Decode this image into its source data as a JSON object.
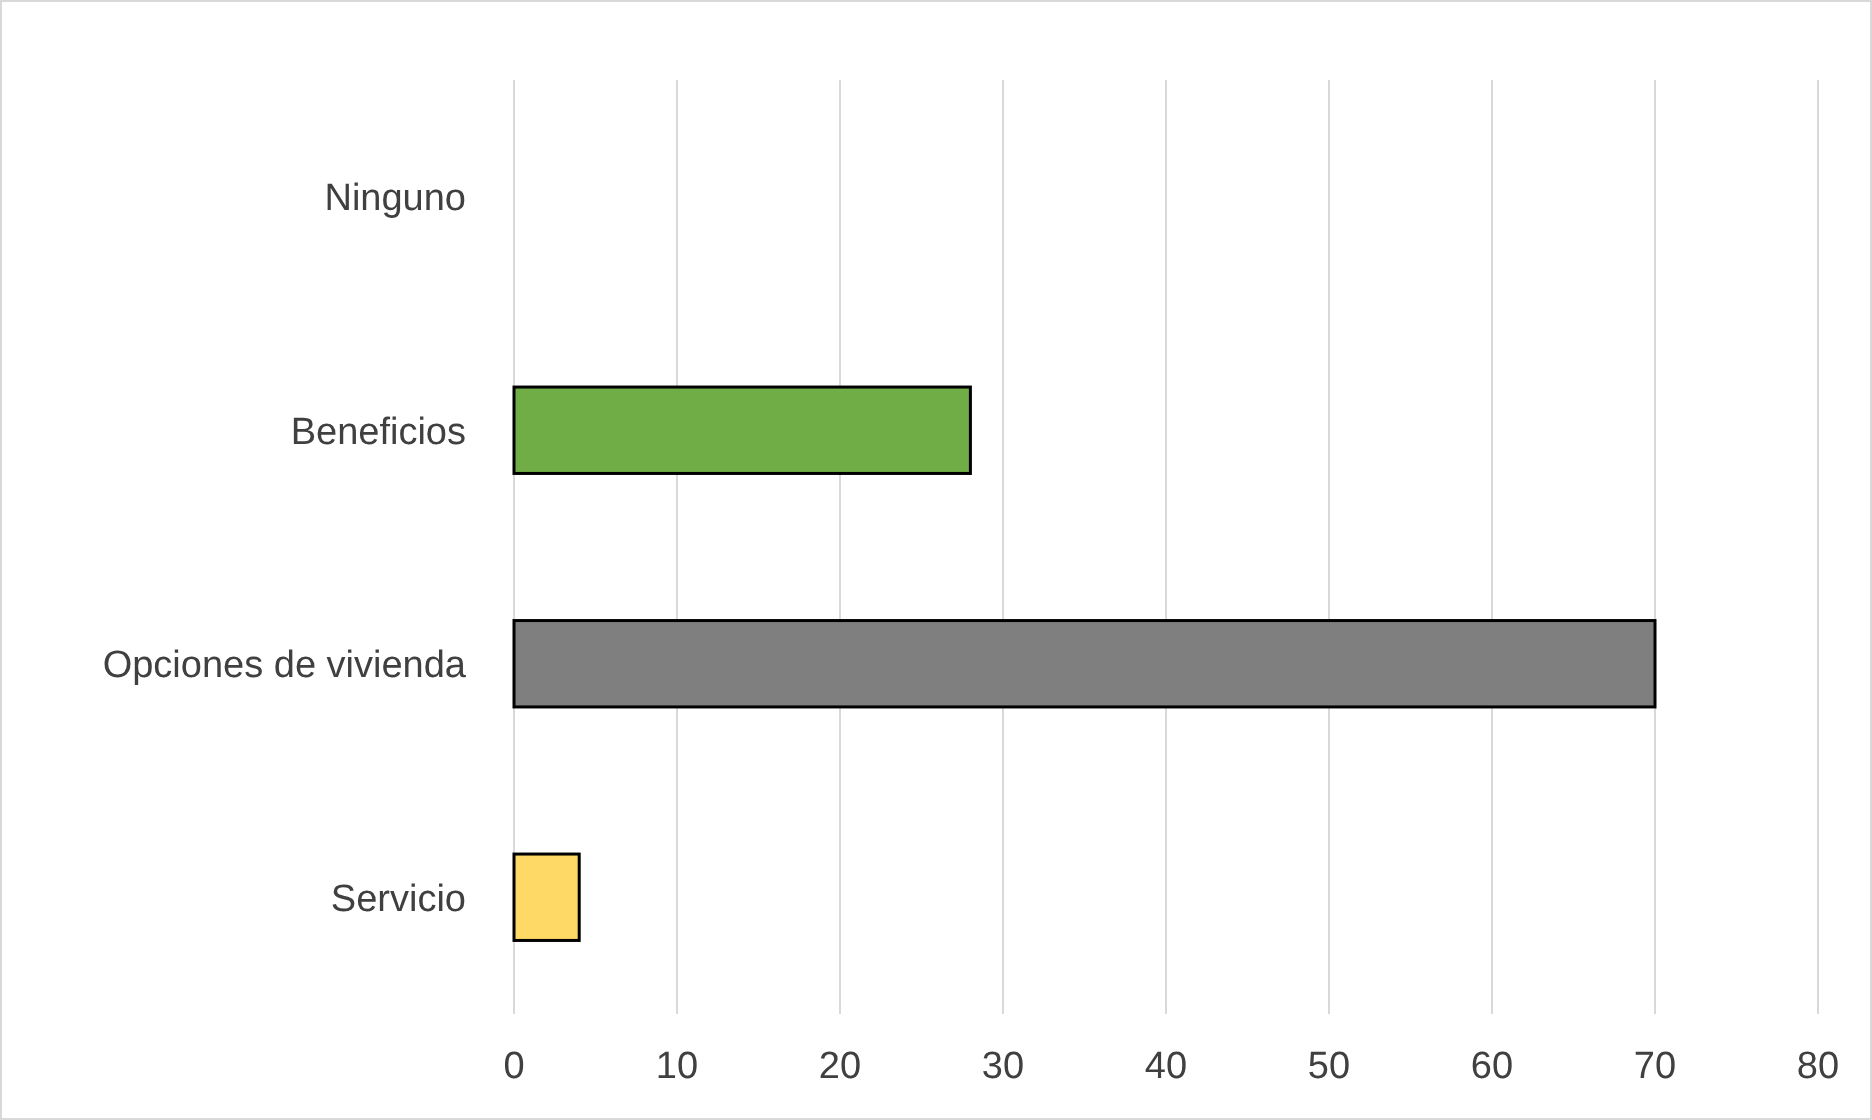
{
  "chart_data": {
    "type": "bar",
    "orientation": "horizontal",
    "categories": [
      "Ninguno",
      "Beneficios",
      "Opciones de vivienda",
      "Servicio"
    ],
    "values": [
      0,
      28,
      70,
      4
    ],
    "colors": [
      "#4472c4",
      "#70ad47",
      "#7f7f7f",
      "#ffd966"
    ],
    "xlim": [
      0,
      80
    ],
    "xticks": [
      0,
      10,
      20,
      30,
      40,
      50,
      60,
      70,
      80
    ],
    "grid": "x"
  }
}
